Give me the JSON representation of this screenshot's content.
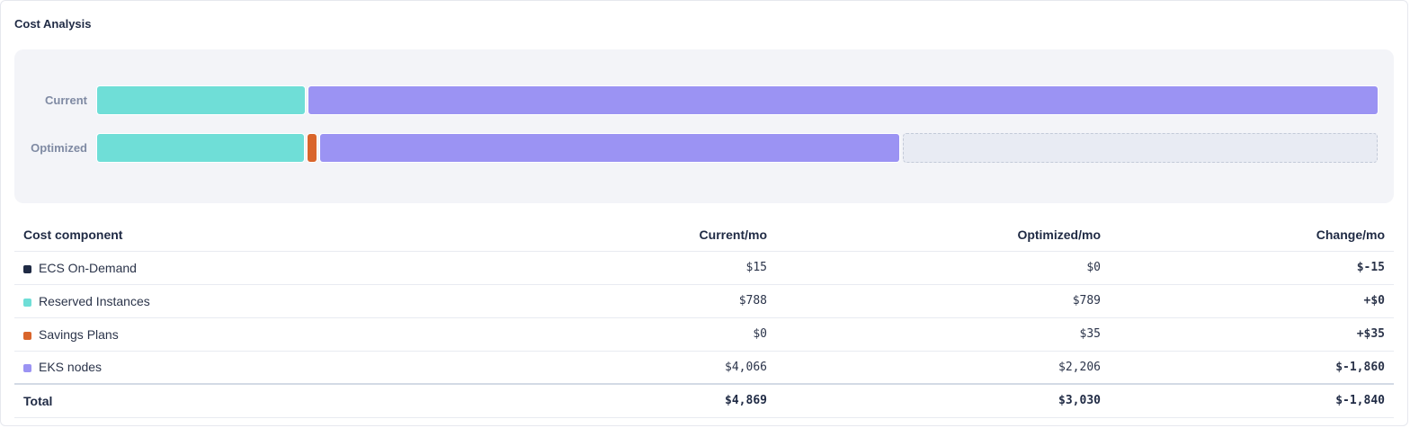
{
  "card": {
    "title": "Cost Analysis"
  },
  "chart": {
    "rows": [
      {
        "label": "Current",
        "segments": [
          {
            "component": "Reserved Instances",
            "value": 788,
            "color": "#6fded7"
          },
          {
            "component": "EKS nodes",
            "value": 4066,
            "color": "#9b93f3"
          }
        ]
      },
      {
        "label": "Optimized",
        "segments": [
          {
            "component": "Reserved Instances",
            "value": 789,
            "color": "#6fded7"
          },
          {
            "component": "Savings Plans",
            "value": 35,
            "color": "#d9652b"
          },
          {
            "component": "EKS nodes",
            "value": 2206,
            "color": "#9b93f3"
          }
        ]
      }
    ]
  },
  "table": {
    "headers": {
      "component": "Cost component",
      "current": "Current/mo",
      "optimized": "Optimized/mo",
      "change": "Change/mo"
    },
    "rows": [
      {
        "name": "ECS On-Demand",
        "color": "#1f2a44",
        "current": "$15",
        "optimized": "$0",
        "change": "$-15",
        "direction": "decrease"
      },
      {
        "name": "Reserved Instances",
        "color": "#6fded7",
        "current": "$788",
        "optimized": "$789",
        "change": "+$0",
        "direction": "increase"
      },
      {
        "name": "Savings Plans",
        "color": "#d9652b",
        "current": "$0",
        "optimized": "$35",
        "change": "+$35",
        "direction": "increase"
      },
      {
        "name": "EKS nodes",
        "color": "#9b93f3",
        "current": "$4,066",
        "optimized": "$2,206",
        "change": "$-1,860",
        "direction": "decrease"
      }
    ],
    "total": {
      "label": "Total",
      "current": "$4,869",
      "optimized": "$3,030",
      "change": "$-1,840",
      "direction": "decrease"
    }
  }
}
